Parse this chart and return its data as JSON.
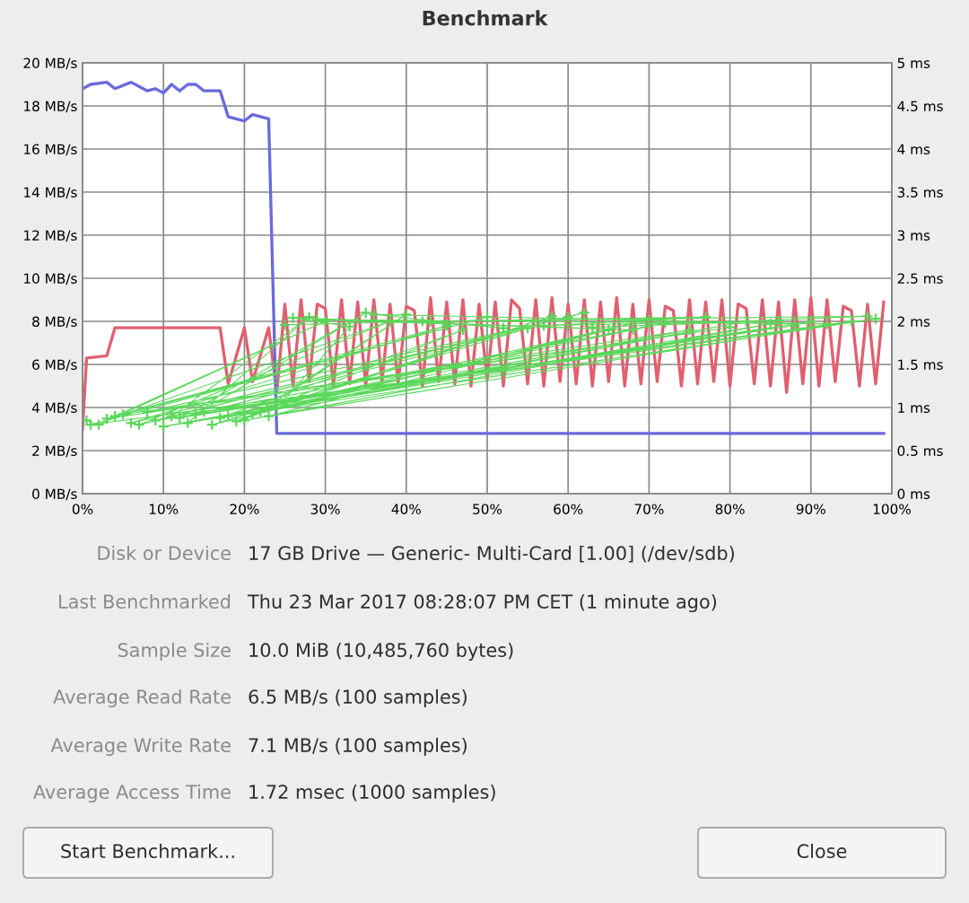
{
  "chart_data": {
    "type": "line",
    "title": "Benchmark",
    "xlim": [
      0,
      100
    ],
    "xticks": [
      {
        "value": 0,
        "label": "0%"
      },
      {
        "value": 10,
        "label": "10%"
      },
      {
        "value": 20,
        "label": "20%"
      },
      {
        "value": 30,
        "label": "30%"
      },
      {
        "value": 40,
        "label": "40%"
      },
      {
        "value": 50,
        "label": "50%"
      },
      {
        "value": 60,
        "label": "60%"
      },
      {
        "value": 70,
        "label": "70%"
      },
      {
        "value": 80,
        "label": "80%"
      },
      {
        "value": 90,
        "label": "90%"
      },
      {
        "value": 100,
        "label": "100%"
      }
    ],
    "ylim": [
      0,
      20
    ],
    "yticks": [
      {
        "value": 0,
        "label": "0 MB/s"
      },
      {
        "value": 2,
        "label": "2 MB/s"
      },
      {
        "value": 4,
        "label": "4 MB/s"
      },
      {
        "value": 6,
        "label": "6 MB/s"
      },
      {
        "value": 8,
        "label": "8 MB/s"
      },
      {
        "value": 10,
        "label": "10 MB/s"
      },
      {
        "value": 12,
        "label": "12 MB/s"
      },
      {
        "value": 14,
        "label": "14 MB/s"
      },
      {
        "value": 16,
        "label": "16 MB/s"
      },
      {
        "value": 18,
        "label": "18 MB/s"
      },
      {
        "value": 20,
        "label": "20 MB/s"
      }
    ],
    "y2lim": [
      0,
      5
    ],
    "y2ticks": [
      {
        "value": 0,
        "label": "0 ms"
      },
      {
        "value": 0.5,
        "label": "0.5 ms"
      },
      {
        "value": 1,
        "label": "1 ms"
      },
      {
        "value": 1.5,
        "label": "1.5 ms"
      },
      {
        "value": 2,
        "label": "2 ms"
      },
      {
        "value": 2.5,
        "label": "2.5 ms"
      },
      {
        "value": 3,
        "label": "3 ms"
      },
      {
        "value": 3.5,
        "label": "3.5 ms"
      },
      {
        "value": 4,
        "label": "4 ms"
      },
      {
        "value": 4.5,
        "label": "4.5 ms"
      },
      {
        "value": 5,
        "label": "5 ms"
      }
    ],
    "grid": true,
    "legend": false,
    "series": [
      {
        "type": "line",
        "axis": "y2",
        "color": "#5ad85a",
        "marker": "cross",
        "x": [
          0.5,
          2,
          30,
          4,
          45,
          6,
          60,
          8,
          75,
          10,
          90,
          12,
          35,
          14,
          55,
          16,
          70,
          18,
          85,
          20,
          40,
          22,
          65,
          23,
          95,
          1,
          50,
          3,
          80,
          5,
          38,
          7,
          62,
          9,
          88,
          11,
          28,
          13,
          72,
          15,
          98,
          17,
          47,
          19,
          58,
          21,
          82,
          24,
          33,
          26,
          68,
          29,
          92,
          36,
          52,
          43,
          77,
          57,
          86,
          63,
          97,
          42,
          25
        ],
        "values": [
          0.85,
          0.8,
          2.0,
          0.9,
          1.95,
          0.82,
          2.05,
          0.95,
          1.9,
          0.78,
          2.0,
          0.88,
          2.1,
          0.92,
          1.92,
          0.8,
          2.02,
          0.9,
          1.97,
          0.85,
          2.08,
          0.95,
          1.9,
          0.9,
          2.0,
          0.8,
          2.05,
          0.87,
          1.93,
          0.92,
          2.0,
          0.8,
          2.1,
          0.85,
          1.95,
          0.9,
          2.05,
          0.82,
          1.98,
          0.95,
          2.03,
          0.88,
          1.9,
          0.84,
          2.06,
          0.93,
          2.0,
          1.0,
          1.94,
          2.04,
          1.9,
          2.02,
          1.97,
          2.08,
          1.92,
          2.0,
          2.05,
          1.95,
          2.01,
          1.93,
          2.06,
          2.0,
          1.96
        ]
      },
      {
        "color": "#e06070",
        "x": [
          0,
          0.5,
          3,
          4,
          10,
          17,
          18,
          20,
          21,
          23,
          24,
          25,
          26,
          27,
          28,
          29,
          30,
          31,
          32,
          33,
          34,
          35,
          36,
          37,
          38,
          39,
          40,
          41,
          42,
          43,
          44,
          45,
          46,
          47,
          48,
          49,
          50,
          51,
          52,
          53,
          54,
          55,
          56,
          57,
          58,
          59,
          60,
          61,
          62,
          63,
          64,
          65,
          66,
          67,
          68,
          69,
          70,
          71,
          72,
          73,
          74,
          75,
          76,
          77,
          78,
          79,
          80,
          81,
          82,
          83,
          84,
          85,
          86,
          87,
          88,
          89,
          90,
          91,
          92,
          93,
          94,
          95,
          96,
          97,
          98,
          99
        ],
        "values": [
          3.0,
          6.3,
          6.4,
          7.7,
          7.7,
          7.7,
          5.1,
          7.7,
          5.2,
          7.7,
          4.7,
          8.8,
          5.0,
          9.0,
          5.2,
          8.8,
          8.6,
          5.0,
          9.0,
          5.1,
          8.9,
          5.0,
          9.0,
          5.2,
          8.8,
          5.1,
          8.7,
          8.5,
          5.0,
          9.1,
          5.2,
          8.9,
          5.1,
          9.0,
          5.0,
          8.8,
          5.3,
          8.9,
          5.0,
          9.0,
          8.6,
          5.1,
          9.0,
          5.0,
          9.1,
          5.2,
          8.8,
          5.1,
          9.0,
          5.0,
          8.9,
          5.2,
          9.1,
          5.0,
          8.8,
          5.1,
          9.0,
          5.2,
          8.7,
          8.5,
          5.0,
          9.0,
          5.1,
          8.9,
          5.2,
          9.0,
          5.0,
          8.8,
          8.6,
          5.1,
          9.0,
          5.0,
          8.9,
          4.7,
          9.0,
          5.1,
          9.1,
          5.0,
          9.0,
          5.2,
          8.7,
          8.5,
          5.0,
          8.8,
          5.1,
          8.9
        ]
      },
      {
        "color": "#6a6ade",
        "x": [
          0,
          1,
          3,
          4,
          6,
          8,
          9,
          10,
          11,
          12,
          13,
          14,
          15,
          17,
          18,
          20,
          21,
          23,
          24,
          99
        ],
        "values": [
          18.8,
          19.0,
          19.1,
          18.8,
          19.1,
          18.7,
          18.8,
          18.6,
          19.0,
          18.7,
          19.0,
          19.0,
          18.7,
          18.7,
          17.5,
          17.3,
          17.6,
          17.4,
          2.8,
          2.8
        ]
      }
    ],
    "annotations": [
      "Disk or Device",
      "17 GB Drive — Generic- Multi-Card [1.00] (/dev/sdb)",
      "Last Benchmarked",
      "Thu 23 Mar 2017 08:28:07 PM CET (1 minute ago)",
      "Sample Size",
      "10.0 MiB (10,485,760 bytes)",
      "Average Read Rate",
      "6.5 MB/s (100 samples)",
      "Average Write Rate",
      "7.1 MB/s (100 samples)",
      "Average Access Time",
      "1.72 msec (1000 samples)",
      "Start Benchmark...",
      "Close"
    ]
  }
}
